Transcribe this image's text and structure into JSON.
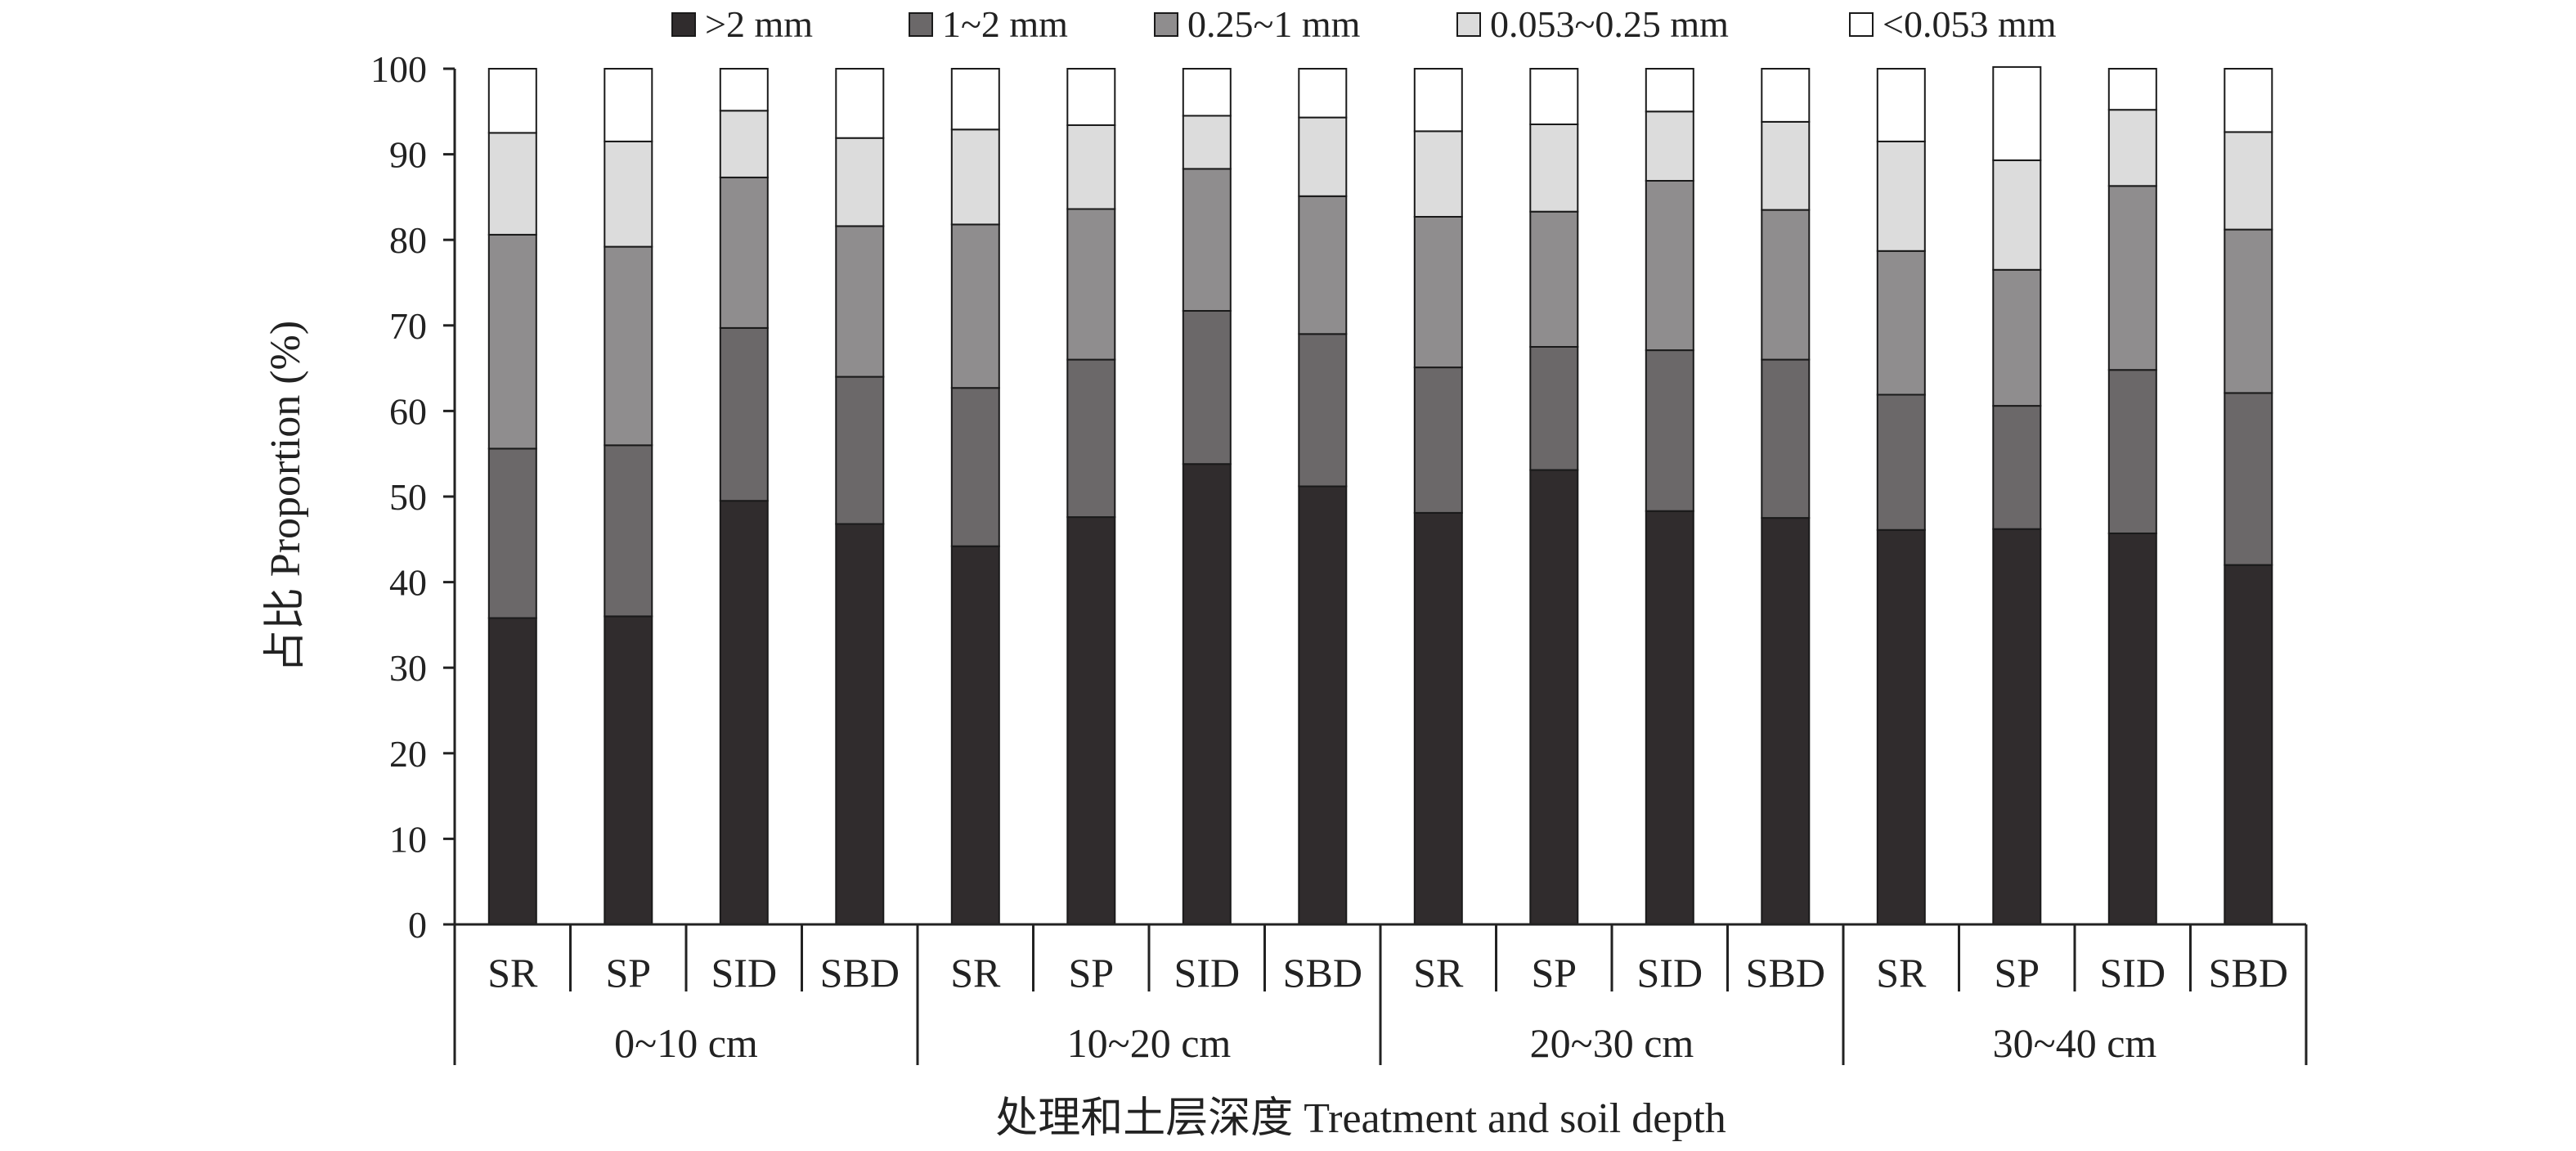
{
  "chart_data": {
    "type": "bar",
    "stacked": true,
    "ylabel": "占比 Proportion (%)",
    "xlabel": "处理和土层深度 Treatment and soil depth",
    "ylim": [
      0,
      100
    ],
    "yticks": [
      0,
      10,
      20,
      30,
      40,
      50,
      60,
      70,
      80,
      90,
      100
    ],
    "grid": false,
    "legend_position": "top",
    "groups": [
      "0~10 cm",
      "10~20 cm",
      "20~30 cm",
      "30~40 cm"
    ],
    "treatments": [
      "SR",
      "SP",
      "SID",
      "SBD"
    ],
    "categories": [
      "SR",
      "SP",
      "SID",
      "SBD",
      "SR",
      "SP",
      "SID",
      "SBD",
      "SR",
      "SP",
      "SID",
      "SBD",
      "SR",
      "SP",
      "SID",
      "SBD"
    ],
    "series": [
      {
        "name": ">2 mm",
        "color": "#302c2d",
        "values": [
          35.8,
          36.0,
          49.5,
          46.8,
          44.2,
          47.6,
          53.8,
          51.2,
          48.1,
          53.1,
          48.3,
          47.5,
          46.1,
          46.2,
          45.7,
          42.0
        ]
      },
      {
        "name": "1~2 mm",
        "color": "#6b6869",
        "values": [
          19.8,
          20.0,
          20.2,
          17.2,
          18.5,
          18.4,
          17.9,
          17.8,
          17.0,
          14.4,
          18.8,
          18.5,
          15.8,
          14.4,
          19.1,
          20.1
        ]
      },
      {
        "name": "0.25~1 mm",
        "color": "#8f8d8e",
        "values": [
          25.0,
          23.2,
          17.6,
          17.6,
          19.1,
          17.6,
          16.6,
          16.1,
          17.6,
          15.8,
          19.8,
          17.5,
          16.8,
          15.9,
          21.5,
          19.1
        ]
      },
      {
        "name": "0.053~0.25 mm",
        "color": "#dcdcdc",
        "values": [
          11.9,
          12.3,
          7.8,
          10.3,
          11.1,
          9.8,
          6.2,
          9.2,
          10.0,
          10.2,
          8.1,
          10.3,
          12.8,
          12.8,
          8.9,
          11.4
        ]
      },
      {
        "name": "<0.053 mm",
        "color": "#ffffff",
        "values": [
          7.5,
          8.5,
          4.9,
          8.1,
          7.1,
          6.6,
          5.5,
          5.7,
          7.3,
          6.5,
          5.0,
          6.2,
          8.5,
          10.9,
          4.8,
          7.4
        ]
      }
    ]
  }
}
